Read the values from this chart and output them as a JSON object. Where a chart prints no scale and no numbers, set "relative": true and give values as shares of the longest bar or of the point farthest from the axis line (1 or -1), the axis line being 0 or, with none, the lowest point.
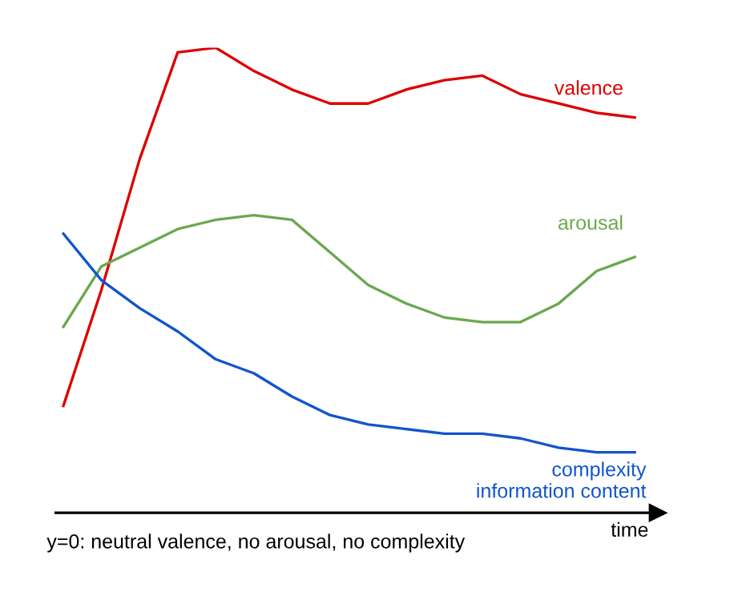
{
  "chart_data": {
    "type": "line",
    "relative": true,
    "xlabel": "time",
    "annotations": [
      "y=0: neutral valence, no arousal, no complexity"
    ],
    "categories": [
      null,
      null,
      null,
      null,
      null,
      null,
      null,
      null,
      null,
      null,
      null,
      null,
      null,
      null,
      null,
      null
    ],
    "series": [
      {
        "name": "valence",
        "color": "#dd0000",
        "values": [
          0.23,
          0.48,
          0.76,
          0.99,
          1.0,
          0.95,
          0.91,
          0.88,
          0.88,
          0.91,
          0.93,
          0.94,
          0.9,
          0.88,
          0.86,
          0.85
        ]
      },
      {
        "name": "arousal",
        "color": "#6aa84f",
        "values": [
          0.4,
          0.53,
          0.57,
          0.61,
          0.63,
          0.64,
          0.63,
          0.56,
          0.49,
          0.45,
          0.42,
          0.41,
          0.41,
          0.45,
          0.52,
          0.55
        ]
      },
      {
        "name": "complexity\ninformation content",
        "color": "#1155cc",
        "values": [
          0.6,
          0.5,
          0.44,
          0.39,
          0.33,
          0.3,
          0.25,
          0.21,
          0.19,
          0.18,
          0.17,
          0.17,
          0.16,
          0.14,
          0.13,
          0.13
        ]
      }
    ],
    "legend": false,
    "marker": "none",
    "line_style": "solid"
  }
}
